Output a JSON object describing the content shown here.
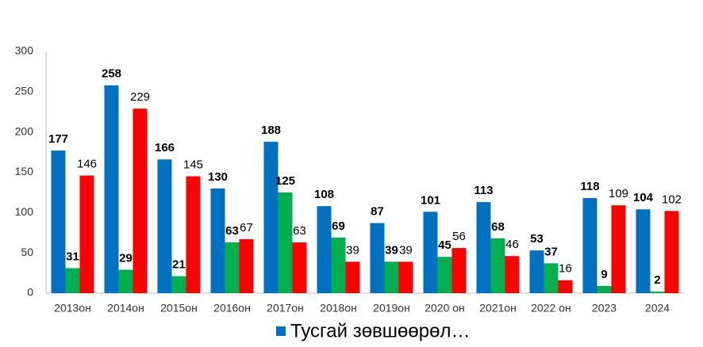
{
  "chart_data": {
    "type": "bar",
    "categories": [
      "2013он",
      "2014он",
      "2015он",
      "2016он",
      "2017он",
      "2018он",
      "2019он",
      "2020 он",
      "2021он",
      "2022 он",
      "2023",
      "2024"
    ],
    "series": [
      {
        "name": "Тусгай зөвшөөрөл…",
        "color": "#0070c0",
        "values": [
          177,
          258,
          166,
          130,
          188,
          108,
          87,
          101,
          113,
          53,
          118,
          104
        ]
      },
      {
        "color": "#00b050",
        "values": [
          31,
          29,
          21,
          63,
          125,
          69,
          39,
          45,
          68,
          37,
          9,
          2
        ]
      },
      {
        "color": "#ff0000",
        "values": [
          146,
          229,
          145,
          67,
          63,
          39,
          39,
          56,
          46,
          16,
          109,
          102
        ]
      }
    ],
    "ylim": [
      0,
      300
    ],
    "yticks": [
      0,
      50,
      100,
      150,
      200,
      250,
      300
    ],
    "grid": false
  }
}
